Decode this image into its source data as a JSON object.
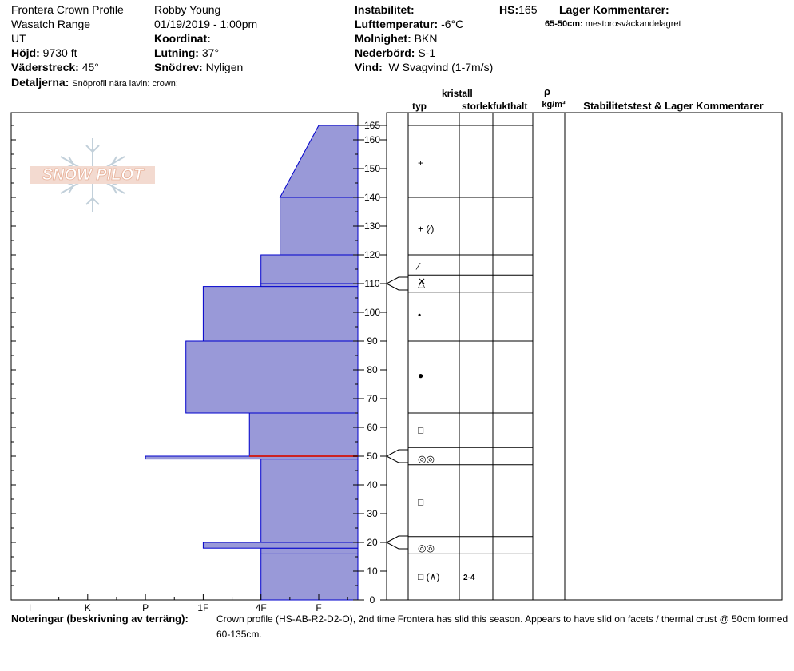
{
  "header": {
    "profile_name": "Frontera Crown Profile",
    "range": "Wasatch Range",
    "state": "UT",
    "elevation_label": "Höjd:",
    "elevation_value": "9730 ft",
    "aspect_label": "Väderstreck:",
    "aspect_value": "45°",
    "observer": "Robby Young",
    "datetime": "01/19/2019 - 1:00pm",
    "coord_label": "Koordinat:",
    "coord_value": "",
    "slope_label": "Lutning:",
    "slope_value": "37°",
    "wind_loading_label": "Snödrev:",
    "wind_loading_value": "Nyligen",
    "instability_label": "Instabilitet:",
    "instability_value": "",
    "air_temp_label": "Lufttemperatur:",
    "air_temp_value": "-6°C",
    "sky_label": "Molnighet:",
    "sky_value": "BKN",
    "precip_label": "Nederbörd:",
    "precip_value": "S-1",
    "wind_label": "Vind:",
    "wind_value": "W Svagvind (1-7m/s)",
    "hs_label": "HS:",
    "hs_value": "165",
    "layer_comments_label": "Lager Kommentarer:",
    "layer_comment_range": "65-50cm:",
    "layer_comment_text": "mestorosväckandelagret",
    "details_label": "Detaljerna:",
    "details_value": "Snöprofil nära lavin: crown;"
  },
  "logo": {
    "text": "SNOW PILOT"
  },
  "columns": {
    "crystal": "kristall",
    "type": "typ",
    "size": "storlek",
    "moisture": "fukthalt",
    "rho": "ρ",
    "density_unit": "kg/m³",
    "stability": "Stabilitetstest & Lager Kommentarer"
  },
  "notes": {
    "label": "Noteringar (beskrivning av terräng):",
    "line1": "Crown profile (HS-AB-R2-D2-O), 2nd time Frontera has slid this season. Appears to have slid on facets / thermal crust @ 50cm formed",
    "line2": "60-135cm."
  },
  "chart_data": {
    "type": "snow_profile",
    "ylabel": "",
    "ylim": [
      0,
      170
    ],
    "y_ticks": [
      0,
      10,
      20,
      30,
      40,
      50,
      60,
      70,
      80,
      90,
      100,
      110,
      120,
      130,
      140,
      150,
      160,
      165
    ],
    "hardness_ticks": [
      "I",
      "K",
      "P",
      "1F",
      "4F",
      "F"
    ],
    "hardness_scale": {
      "F": 0,
      "4F": 1,
      "1F": 2,
      "P": 3,
      "K": 4,
      "I": 5
    },
    "layers": [
      {
        "bottom": 0,
        "top": 16,
        "hardness": 1
      },
      {
        "bottom": 16,
        "top": 18,
        "hardness": 1
      },
      {
        "bottom": 18,
        "top": 20,
        "hardness": 2
      },
      {
        "bottom": 20,
        "top": 49,
        "hardness": 1
      },
      {
        "bottom": 49,
        "top": 50,
        "hardness": 3
      },
      {
        "bottom": 50,
        "top": 65,
        "hardness": 1.2
      },
      {
        "bottom": 65,
        "top": 90,
        "hardness": 2.3
      },
      {
        "bottom": 90,
        "top": 109,
        "hardness": 2
      },
      {
        "bottom": 109,
        "top": 110,
        "hardness": 1
      },
      {
        "bottom": 110,
        "top": 120,
        "hardness": 1
      },
      {
        "bottom": 120,
        "top": 140,
        "hardness": 0.67
      },
      {
        "bottom": 140,
        "top": 165,
        "hardness": 0,
        "slope_from": 0.67
      }
    ],
    "highlight_layer": {
      "at": 50,
      "color": "#cc2222"
    },
    "boundaries_right": [
      16,
      22,
      47,
      53,
      65,
      90,
      107,
      113,
      120,
      140,
      165
    ],
    "marker_depths": [
      110,
      50,
      20
    ],
    "crystal_marks": [
      {
        "depth": 152,
        "symbol": "+"
      },
      {
        "depth": 129,
        "symbol": "+ (⁄)"
      },
      {
        "depth": 116,
        "symbol": "⁄"
      },
      {
        "depth": 111,
        "symbol": "⨯"
      },
      {
        "depth": 110,
        "symbol": "△"
      },
      {
        "depth": 99,
        "symbol": "•"
      },
      {
        "depth": 78,
        "symbol": "●"
      },
      {
        "depth": 59,
        "symbol": "□"
      },
      {
        "depth": 49,
        "symbol": "◎◎"
      },
      {
        "depth": 34,
        "symbol": "□"
      },
      {
        "depth": 18,
        "symbol": "◎◎"
      },
      {
        "depth": 8,
        "symbol": "□ (∧)",
        "size": "2-4"
      }
    ],
    "colors": {
      "fill": "#9999d8",
      "edge": "#0000cc",
      "axis": "#000000"
    }
  }
}
